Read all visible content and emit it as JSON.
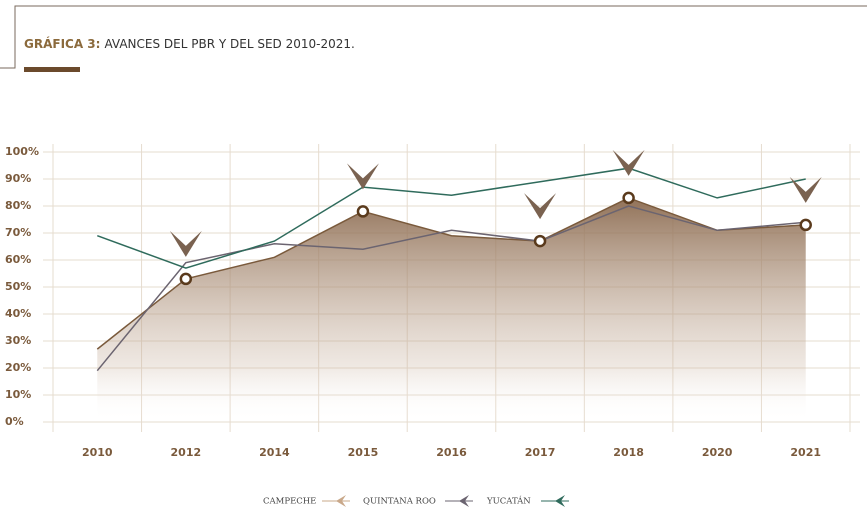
{
  "chart_data": {
    "type": "line",
    "title_label": "GRÁFICA 3:",
    "title": "AVANCES DEL PBR  Y DEL SED 2010-2021.",
    "categories": [
      "2010",
      "2012",
      "2014",
      "2015",
      "2016",
      "2017",
      "2018",
      "2020",
      "2021"
    ],
    "series": [
      {
        "name": "CAMPECHE",
        "color": "#7a5a3c",
        "values": [
          27,
          53,
          61,
          78,
          69,
          67,
          83,
          71,
          73
        ]
      },
      {
        "name": "QUINTANA ROO",
        "color": "#6b6470",
        "values": [
          19,
          59,
          66,
          64,
          71,
          67,
          80,
          71,
          74
        ]
      },
      {
        "name": "YUCATÁN",
        "color": "#2f6b5c",
        "values": [
          69,
          57,
          67,
          87,
          84,
          89,
          94,
          83,
          90
        ]
      }
    ],
    "marker_indices": [
      1,
      3,
      5,
      6,
      8
    ],
    "ylim": [
      0,
      100
    ],
    "yticks": [
      {
        "value": 0,
        "label": "0%"
      },
      {
        "value": 10,
        "label": "10%"
      },
      {
        "value": 20,
        "label": "20%"
      },
      {
        "value": 30,
        "label": "30%"
      },
      {
        "value": 40,
        "label": "40%"
      },
      {
        "value": 50,
        "label": "50%"
      },
      {
        "value": 60,
        "label": "60%"
      },
      {
        "value": 70,
        "label": "70%"
      },
      {
        "value": 80,
        "label": "80%"
      },
      {
        "value": 90,
        "label": "90%"
      },
      {
        "value": 100,
        "label": "100%"
      }
    ],
    "grid": true
  }
}
